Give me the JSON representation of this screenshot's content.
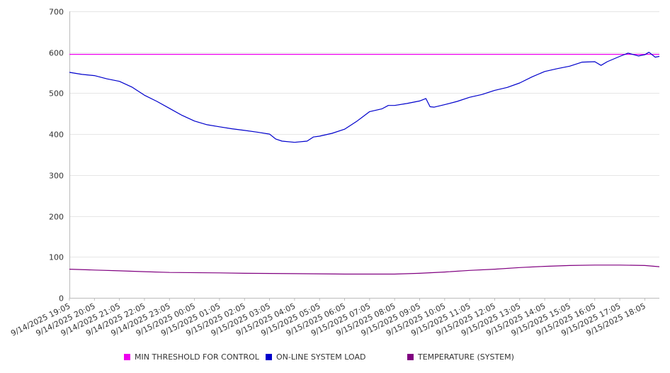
{
  "chart_data": {
    "type": "line",
    "yticks": [
      0,
      100,
      200,
      300,
      400,
      500,
      600,
      700
    ],
    "ylim": [
      0,
      700
    ],
    "xlim": [
      "9/14/2025 19:05",
      "9/15/2025 18:40"
    ],
    "x_tick_labels": [
      "9/14/2025 19:05",
      "9/14/2025 20:05",
      "9/14/2025 21:05",
      "9/14/2025 22:05",
      "9/14/2025 23:05",
      "9/15/2025 00:05",
      "9/15/2025 01:05",
      "9/15/2025 02:05",
      "9/15/2025 03:05",
      "9/15/2025 04:05",
      "9/15/2025 05:05",
      "9/15/2025 06:05",
      "9/15/2025 07:05",
      "9/15/2025 08:05",
      "9/15/2025 09:05",
      "9/15/2025 10:05",
      "9/15/2025 11:05",
      "9/15/2025 12:05",
      "9/15/2025 13:05",
      "9/15/2025 14:05",
      "9/15/2025 15:05",
      "9/15/2025 16:05",
      "9/15/2025 17:05",
      "9/15/2025 18:05"
    ],
    "grid": true,
    "legend_position": "bottom",
    "series": [
      {
        "name": "MIN THRESHOLD FOR CONTROL",
        "color": "#ee00ee",
        "points": [
          [
            "9/14/2025 19:05",
            595
          ],
          [
            "9/15/2025 18:40",
            595
          ]
        ]
      },
      {
        "name": "ON-LINE SYSTEM LOAD",
        "color": "#0000cc",
        "points": [
          [
            "9/14/2025 19:05",
            551
          ],
          [
            "9/14/2025 19:35",
            546
          ],
          [
            "9/14/2025 20:05",
            543
          ],
          [
            "9/14/2025 20:35",
            535
          ],
          [
            "9/14/2025 21:05",
            529
          ],
          [
            "9/14/2025 21:35",
            515
          ],
          [
            "9/14/2025 22:05",
            495
          ],
          [
            "9/14/2025 22:35",
            480
          ],
          [
            "9/14/2025 23:05",
            463
          ],
          [
            "9/14/2025 23:35",
            446
          ],
          [
            "9/15/2025 00:05",
            432
          ],
          [
            "9/15/2025 00:35",
            423
          ],
          [
            "9/15/2025 01:05",
            418
          ],
          [
            "9/15/2025 01:35",
            413
          ],
          [
            "9/15/2025 02:05",
            409
          ],
          [
            "9/15/2025 02:35",
            405
          ],
          [
            "9/15/2025 03:05",
            400
          ],
          [
            "9/15/2025 03:20",
            388
          ],
          [
            "9/15/2025 03:35",
            383
          ],
          [
            "9/15/2025 04:05",
            380
          ],
          [
            "9/15/2025 04:35",
            383
          ],
          [
            "9/15/2025 04:50",
            393
          ],
          [
            "9/15/2025 05:05",
            395
          ],
          [
            "9/15/2025 05:35",
            402
          ],
          [
            "9/15/2025 06:05",
            412
          ],
          [
            "9/15/2025 06:35",
            432
          ],
          [
            "9/15/2025 07:05",
            455
          ],
          [
            "9/15/2025 07:35",
            462
          ],
          [
            "9/15/2025 07:50",
            470
          ],
          [
            "9/15/2025 08:05",
            470
          ],
          [
            "9/15/2025 08:35",
            475
          ],
          [
            "9/15/2025 09:05",
            481
          ],
          [
            "9/15/2025 09:20",
            487
          ],
          [
            "9/15/2025 09:30",
            467
          ],
          [
            "9/15/2025 09:40",
            466
          ],
          [
            "9/15/2025 10:05",
            472
          ],
          [
            "9/15/2025 10:35",
            480
          ],
          [
            "9/15/2025 11:05",
            490
          ],
          [
            "9/15/2025 11:35",
            497
          ],
          [
            "9/15/2025 12:05",
            507
          ],
          [
            "9/15/2025 12:35",
            514
          ],
          [
            "9/15/2025 13:05",
            525
          ],
          [
            "9/15/2025 13:35",
            540
          ],
          [
            "9/15/2025 14:05",
            553
          ],
          [
            "9/15/2025 14:35",
            560
          ],
          [
            "9/15/2025 15:05",
            566
          ],
          [
            "9/15/2025 15:35",
            576
          ],
          [
            "9/15/2025 16:05",
            577
          ],
          [
            "9/15/2025 16:20",
            568
          ],
          [
            "9/15/2025 16:35",
            577
          ],
          [
            "9/15/2025 17:05",
            590
          ],
          [
            "9/15/2025 17:25",
            598
          ],
          [
            "9/15/2025 17:50",
            591
          ],
          [
            "9/15/2025 18:05",
            594
          ],
          [
            "9/15/2025 18:15",
            600
          ],
          [
            "9/15/2025 18:30",
            588
          ],
          [
            "9/15/2025 18:40",
            590
          ]
        ]
      },
      {
        "name": "TEMPERATURE (SYSTEM)",
        "color": "#800080",
        "points": [
          [
            "9/14/2025 19:05",
            70
          ],
          [
            "9/14/2025 20:05",
            68
          ],
          [
            "9/14/2025 21:05",
            66
          ],
          [
            "9/14/2025 22:05",
            64
          ],
          [
            "9/14/2025 23:05",
            62
          ],
          [
            "9/15/2025 01:05",
            61
          ],
          [
            "9/15/2025 02:05",
            60
          ],
          [
            "9/15/2025 04:05",
            59
          ],
          [
            "9/15/2025 06:05",
            58
          ],
          [
            "9/15/2025 08:05",
            58
          ],
          [
            "9/15/2025 09:05",
            60
          ],
          [
            "9/15/2025 10:05",
            63
          ],
          [
            "9/15/2025 11:05",
            67
          ],
          [
            "9/15/2025 12:05",
            70
          ],
          [
            "9/15/2025 13:05",
            74
          ],
          [
            "9/15/2025 14:05",
            77
          ],
          [
            "9/15/2025 15:05",
            79
          ],
          [
            "9/15/2025 16:05",
            80
          ],
          [
            "9/15/2025 17:05",
            80
          ],
          [
            "9/15/2025 18:05",
            79
          ],
          [
            "9/15/2025 18:40",
            76
          ]
        ]
      }
    ]
  }
}
